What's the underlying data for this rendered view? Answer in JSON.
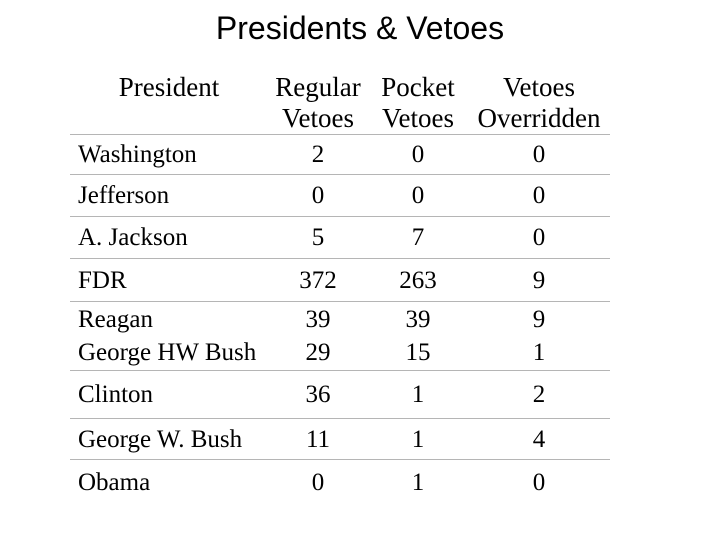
{
  "slide": {
    "title": "Presidents & Vetoes"
  },
  "table": {
    "headers": [
      "President",
      "Regular\nVetoes",
      "Pocket\nVetoes",
      "Vetoes\nOverridden"
    ],
    "rows": [
      {
        "cells": [
          "Washington",
          "2",
          "0",
          "0"
        ]
      },
      {
        "cells": [
          "Jefferson",
          "0",
          "0",
          "0"
        ]
      },
      {
        "cells": [
          "A. Jackson",
          "5",
          "7",
          "0"
        ]
      },
      {
        "cells": [
          "FDR",
          "372",
          "263",
          "9"
        ]
      },
      {
        "cells": [
          "Reagan\nGeorge HW Bush",
          "39\n29",
          "39\n15",
          "9\n1"
        ]
      },
      {
        "cells": [
          "Clinton",
          "36",
          "1",
          "2"
        ]
      },
      {
        "cells": [
          "George W. Bush",
          "11",
          "1",
          "4"
        ]
      },
      {
        "cells": [
          "Obama",
          "0",
          "1",
          "0"
        ]
      }
    ]
  },
  "colors": {
    "background": "#ffffff",
    "text": "#000000",
    "grid_line": "#b5b5b5"
  }
}
